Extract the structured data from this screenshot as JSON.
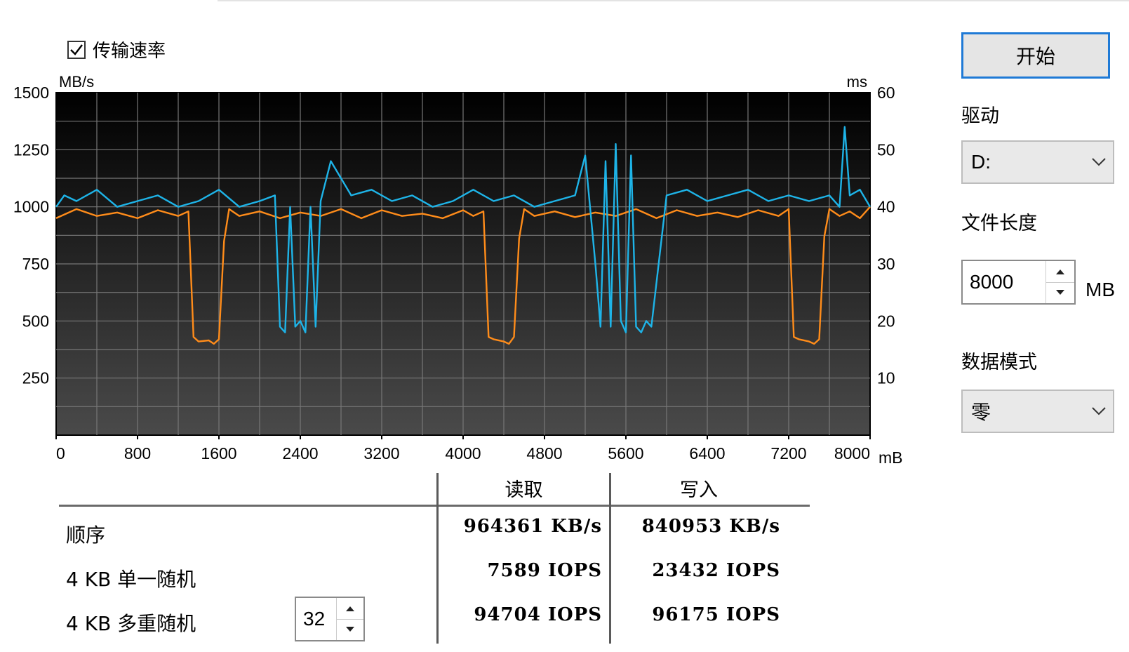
{
  "transfer_rate": {
    "label": "传输速率",
    "checked": true
  },
  "start_button": {
    "label": "开始"
  },
  "drive": {
    "label": "驱动",
    "value": "D:"
  },
  "file_size": {
    "label": "文件长度",
    "value": "8000",
    "unit": "MB"
  },
  "data_mode": {
    "label": "数据模式",
    "value": "零"
  },
  "chart_data": {
    "type": "line",
    "left_axis_unit": "MB/s",
    "right_axis_unit": "ms",
    "x_unit": "mB",
    "ylim": [
      0,
      1500
    ],
    "y2lim": [
      0,
      60
    ],
    "xlim": [
      0,
      8000
    ],
    "y_ticks": [
      "1500",
      "1250",
      "1000",
      "750",
      "500",
      "250"
    ],
    "y2_ticks": [
      "60",
      "50",
      "40",
      "30",
      "20",
      "10"
    ],
    "x_ticks": [
      "0",
      "800",
      "1600",
      "2400",
      "3200",
      "4000",
      "4800",
      "5600",
      "6400",
      "7200",
      "8000"
    ],
    "grid": true,
    "series": [
      {
        "color": "#ff8c1a",
        "x": [
          0,
          200,
          400,
          600,
          800,
          1000,
          1200,
          1300,
          1350,
          1400,
          1500,
          1550,
          1600,
          1650,
          1700,
          1800,
          2000,
          2200,
          2400,
          2600,
          2800,
          3000,
          3200,
          3400,
          3600,
          3800,
          4000,
          4100,
          4200,
          4250,
          4300,
          4400,
          4450,
          4500,
          4550,
          4600,
          4700,
          4900,
          5100,
          5300,
          5500,
          5700,
          5900,
          6100,
          6300,
          6500,
          6700,
          6900,
          7100,
          7200,
          7250,
          7300,
          7400,
          7450,
          7500,
          7550,
          7600,
          7700,
          7800,
          7900,
          8000
        ],
        "values": [
          950,
          990,
          960,
          975,
          950,
          985,
          960,
          980,
          430,
          410,
          415,
          400,
          420,
          850,
          990,
          960,
          980,
          950,
          975,
          960,
          990,
          950,
          985,
          960,
          970,
          950,
          985,
          960,
          980,
          430,
          420,
          410,
          400,
          430,
          860,
          990,
          960,
          980,
          955,
          975,
          960,
          990,
          950,
          985,
          960,
          975,
          955,
          985,
          960,
          990,
          430,
          420,
          410,
          400,
          420,
          870,
          990,
          960,
          980,
          950,
          1000
        ]
      },
      {
        "color": "#1eb4e8",
        "x": [
          0,
          80,
          200,
          400,
          600,
          800,
          1000,
          1200,
          1400,
          1600,
          1800,
          2000,
          2150,
          2200,
          2250,
          2300,
          2350,
          2400,
          2450,
          2500,
          2550,
          2600,
          2700,
          2900,
          3100,
          3300,
          3500,
          3700,
          3900,
          4100,
          4300,
          4500,
          4700,
          4900,
          5100,
          5200,
          5300,
          5350,
          5400,
          5450,
          5500,
          5550,
          5600,
          5650,
          5700,
          5750,
          5800,
          5850,
          6000,
          6200,
          6400,
          6600,
          6800,
          7000,
          7200,
          7400,
          7600,
          7700,
          7750,
          7800,
          7900,
          8000
        ],
        "values": [
          40,
          42,
          41,
          43,
          40,
          41,
          42,
          40,
          41,
          43,
          40,
          41,
          42,
          19,
          18,
          40,
          19,
          20,
          18,
          40,
          19,
          41,
          48,
          42,
          43,
          41,
          42,
          40,
          41,
          43,
          41,
          42,
          40,
          41,
          42,
          49,
          30,
          19,
          48,
          19,
          51,
          20,
          18,
          49,
          19,
          18,
          20,
          19,
          42,
          43,
          41,
          42,
          43,
          41,
          42,
          41,
          42,
          40,
          54,
          42,
          43,
          40
        ]
      }
    ]
  },
  "results": {
    "header_read": "读取",
    "header_write": "写入",
    "rows": [
      {
        "label": "顺序",
        "read": "964361 KB/s",
        "write": "840953 KB/s"
      },
      {
        "label": "4 KB 单一随机",
        "read": "7589 IOPS",
        "write": "23432 IOPS"
      },
      {
        "label": "4 KB 多重随机",
        "read": "94704 IOPS",
        "write": "96175 IOPS"
      }
    ],
    "queue_depth": "32"
  }
}
